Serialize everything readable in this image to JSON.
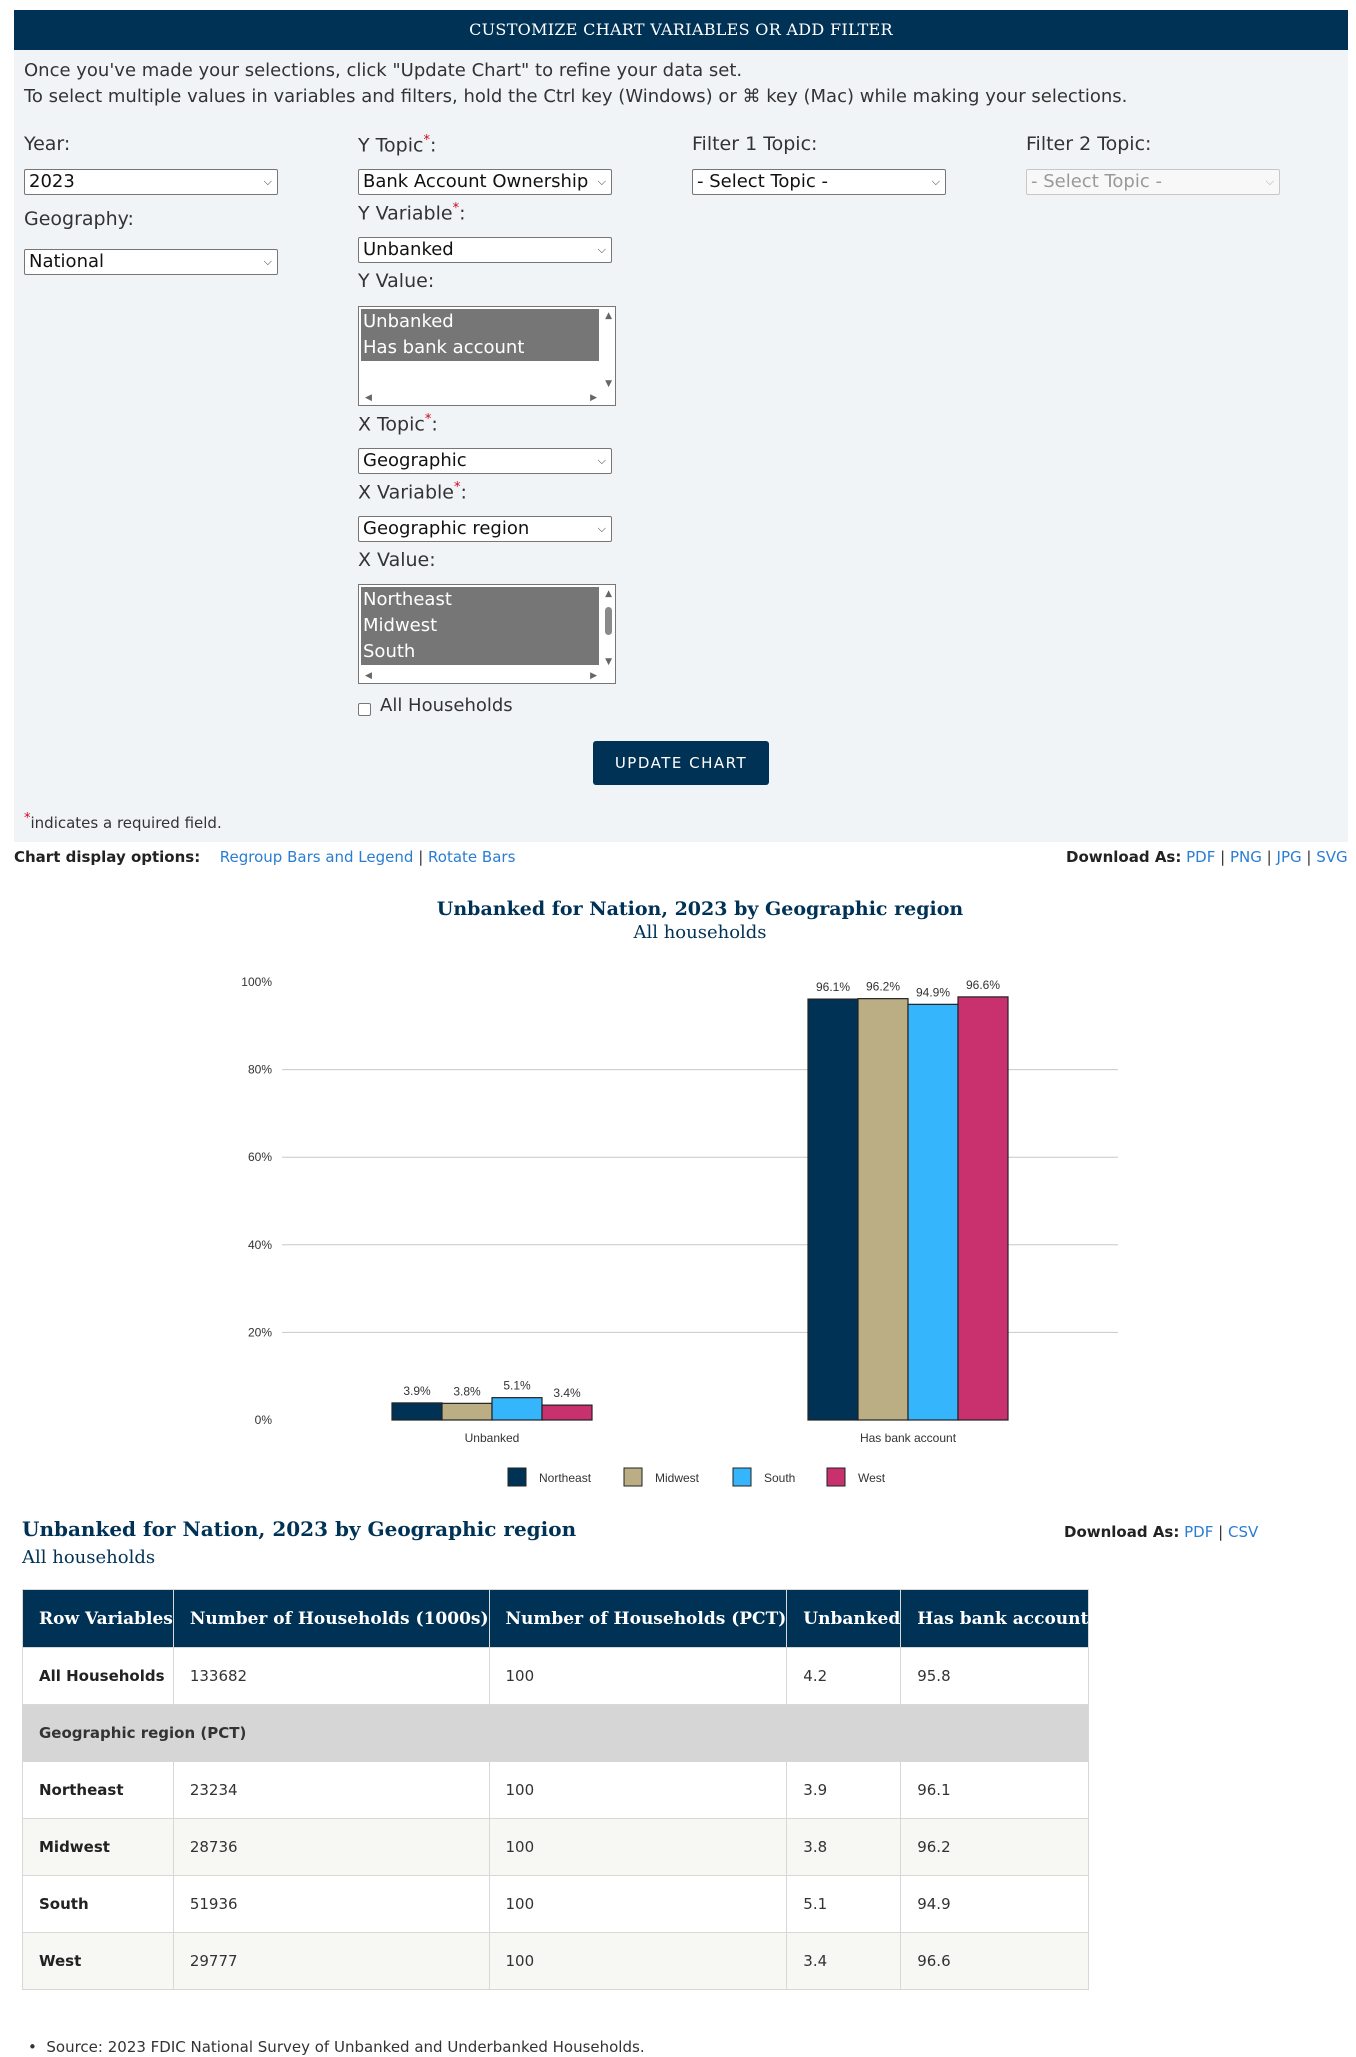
{
  "panel": {
    "header": "CUSTOMIZE CHART VARIABLES OR ADD FILTER",
    "intro_line1": "Once you've made your selections, click \"Update Chart\" to refine your data set.",
    "intro_line2": "To select multiple values in variables and filters, hold the Ctrl key (Windows) or ⌘ key (Mac) while making your selections.",
    "year": {
      "label": "Year:",
      "value": "2023"
    },
    "geography": {
      "label": "Geography:",
      "value": "National"
    },
    "y_topic": {
      "label": "Y Topic",
      "value": "Bank Account Ownership"
    },
    "y_variable": {
      "label": "Y Variable",
      "value": "Unbanked"
    },
    "y_value": {
      "label": "Y Value:",
      "options": [
        "Unbanked",
        "Has bank account"
      ]
    },
    "x_topic": {
      "label": "X Topic",
      "value": "Geographic"
    },
    "x_variable": {
      "label": "X Variable",
      "value": "Geographic region"
    },
    "x_value": {
      "label": "X Value:",
      "options": [
        "Northeast",
        "Midwest",
        "South"
      ]
    },
    "all_households_label": "All Households",
    "filter1": {
      "label": "Filter 1 Topic:",
      "value": "- Select Topic -"
    },
    "filter2": {
      "label": "Filter 2 Topic:",
      "value": "- Select Topic -"
    },
    "required_mark": "*",
    "colon": ":",
    "update_button": "UPDATE CHART",
    "required_note": "indicates a required field."
  },
  "display_options": {
    "label": "Chart display options:",
    "regroup": "Regroup Bars and Legend",
    "rotate": "Rotate Bars",
    "separator": "|"
  },
  "download_chart": {
    "label": "Download As:",
    "formats": [
      "PDF",
      "PNG",
      "JPG",
      "SVG"
    ]
  },
  "chart_data": {
    "type": "bar",
    "title": "Unbanked for Nation, 2023 by Geographic region",
    "subtitle": "All households",
    "categories": [
      "Unbanked",
      "Has bank account"
    ],
    "series": [
      {
        "name": "Northeast",
        "values": [
          3.9,
          96.1
        ],
        "labels": [
          "3.9%",
          "96.1%"
        ],
        "color": "#003256"
      },
      {
        "name": "Midwest",
        "values": [
          3.8,
          96.2
        ],
        "labels": [
          "3.8%",
          "96.2%"
        ],
        "color": "#bbae85"
      },
      {
        "name": "South",
        "values": [
          5.1,
          94.9
        ],
        "labels": [
          "5.1%",
          "94.9%"
        ],
        "color": "#35b6fc"
      },
      {
        "name": "West",
        "values": [
          3.4,
          96.6
        ],
        "labels": [
          "3.4%",
          "96.6%"
        ],
        "color": "#c8306e"
      }
    ],
    "y_ticks": [
      "0%",
      "20%",
      "40%",
      "60%",
      "80%",
      "100%"
    ],
    "ylim": [
      0,
      100
    ],
    "grid": true,
    "legend": "bottom"
  },
  "table_section": {
    "title": "Unbanked for Nation, 2023 by Geographic region",
    "subtitle": "All households",
    "download_label": "Download As:",
    "download_formats": [
      "PDF",
      "CSV"
    ],
    "columns": [
      "Row Variables",
      "Number of Households (1000s)",
      "Number of Households (PCT)",
      "Unbanked",
      "Has bank account"
    ],
    "all_row": [
      "All Households",
      "133682",
      "100",
      "4.2",
      "95.8"
    ],
    "group_label": "Geographic region (PCT)",
    "rows": [
      [
        "Northeast",
        "23234",
        "100",
        "3.9",
        "96.1"
      ],
      [
        "Midwest",
        "28736",
        "100",
        "3.8",
        "96.2"
      ],
      [
        "South",
        "51936",
        "100",
        "5.1",
        "94.9"
      ],
      [
        "West",
        "29777",
        "100",
        "3.4",
        "96.6"
      ]
    ]
  },
  "source": "Source: 2023 FDIC National Survey of Unbanked and Underbanked Households."
}
